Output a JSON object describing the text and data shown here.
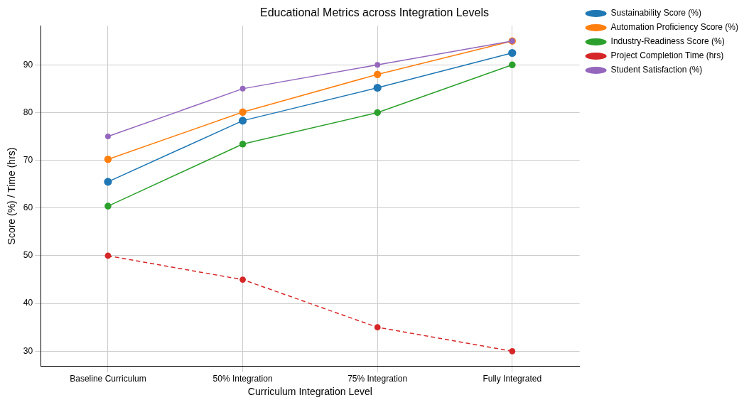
{
  "chart_data": {
    "type": "line",
    "title": "Educational Metrics across Integration Levels",
    "xlabel": "Curriculum Integration Level",
    "ylabel": "Score (%) / Time (hrs)",
    "categories": [
      "Baseline Curriculum",
      "50% Integration",
      "75% Integration",
      "Fully Integrated"
    ],
    "series": [
      {
        "name": "Sustainability Score (%)",
        "color": "#1f77b4",
        "values": [
          65.5,
          78.3,
          85.2,
          92.5
        ]
      },
      {
        "name": "Automation Proficiency Score (%)",
        "color": "#ff7f0e",
        "values": [
          70.2,
          80.1,
          88,
          95
        ]
      },
      {
        "name": "Industry-Readiness Score (%)",
        "color": "#2ca02c",
        "values": [
          60.4,
          73.4,
          80,
          90
        ]
      },
      {
        "name": "Project Completion Time (hrs)",
        "color": "#d62728",
        "values": [
          50,
          45,
          35,
          30
        ],
        "line_style": "dashed"
      },
      {
        "name": "Student Satisfaction (%)",
        "color": "#9467bd",
        "values": [
          75,
          85,
          90,
          95
        ]
      }
    ],
    "ylim": [
      26.8,
      98.2
    ],
    "yticks": [
      30,
      40,
      50,
      60,
      70,
      80,
      90
    ],
    "grid": true,
    "legend": "top right",
    "marker": "circle",
    "line_style": "solid"
  }
}
